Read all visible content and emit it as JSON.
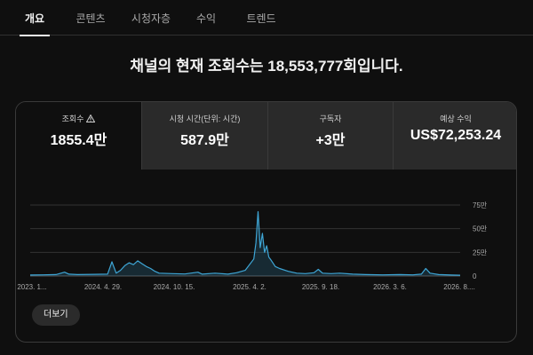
{
  "tabs": [
    {
      "label": "개요",
      "active": true
    },
    {
      "label": "콘텐츠",
      "active": false
    },
    {
      "label": "시청자층",
      "active": false
    },
    {
      "label": "수익",
      "active": false
    },
    {
      "label": "트렌드",
      "active": false
    }
  ],
  "headline": "채널의 현재 조회수는 18,553,777회입니다.",
  "metrics": [
    {
      "label": "조회수",
      "value": "1855.4만",
      "icon": "warning-icon",
      "active": true
    },
    {
      "label": "시청 시간(단위: 시간)",
      "value": "587.9만",
      "active": false
    },
    {
      "label": "구독자",
      "value": "+3만",
      "active": false
    },
    {
      "label": "예상 수익",
      "value": "US$72,253.24",
      "active": false
    }
  ],
  "more_button": "더보기",
  "colors": {
    "series": "#3ea6d6",
    "background": "#0f0f0f",
    "inactive_metric": "#2a2a2a"
  },
  "chart_data": {
    "type": "line",
    "title": "",
    "xlabel": "",
    "ylabel": "",
    "ylim": [
      0,
      750000
    ],
    "y_ticks": [
      0,
      250000,
      500000,
      750000
    ],
    "y_tick_labels": [
      "0",
      "25만",
      "50만",
      "75만"
    ],
    "y_axis_position": "right",
    "grid": true,
    "x_tick_labels": [
      "2023. 1...",
      "2024. 4. 29.",
      "2024. 10. 15.",
      "2025. 4. 2.",
      "2025. 9. 18.",
      "2026. 3. 6.",
      "2026. 8...."
    ],
    "x_range": [
      "2023-11-08",
      "2026-08-24"
    ],
    "series": [
      {
        "values": [
          [
            0.0,
            10000
          ],
          [
            0.03,
            12000
          ],
          [
            0.06,
            15000
          ],
          [
            0.08,
            40000
          ],
          [
            0.09,
            20000
          ],
          [
            0.11,
            15000
          ],
          [
            0.15,
            18000
          ],
          [
            0.18,
            20000
          ],
          [
            0.19,
            150000
          ],
          [
            0.2,
            30000
          ],
          [
            0.21,
            60000
          ],
          [
            0.22,
            110000
          ],
          [
            0.23,
            140000
          ],
          [
            0.24,
            120000
          ],
          [
            0.25,
            160000
          ],
          [
            0.26,
            130000
          ],
          [
            0.27,
            100000
          ],
          [
            0.28,
            80000
          ],
          [
            0.29,
            50000
          ],
          [
            0.3,
            30000
          ],
          [
            0.33,
            25000
          ],
          [
            0.36,
            22000
          ],
          [
            0.39,
            40000
          ],
          [
            0.4,
            20000
          ],
          [
            0.43,
            30000
          ],
          [
            0.46,
            20000
          ],
          [
            0.48,
            35000
          ],
          [
            0.5,
            60000
          ],
          [
            0.52,
            180000
          ],
          [
            0.525,
            350000
          ],
          [
            0.53,
            680000
          ],
          [
            0.535,
            300000
          ],
          [
            0.54,
            450000
          ],
          [
            0.545,
            250000
          ],
          [
            0.55,
            320000
          ],
          [
            0.555,
            200000
          ],
          [
            0.56,
            170000
          ],
          [
            0.57,
            100000
          ],
          [
            0.58,
            80000
          ],
          [
            0.6,
            50000
          ],
          [
            0.62,
            30000
          ],
          [
            0.64,
            25000
          ],
          [
            0.66,
            35000
          ],
          [
            0.67,
            70000
          ],
          [
            0.68,
            30000
          ],
          [
            0.7,
            25000
          ],
          [
            0.72,
            30000
          ],
          [
            0.75,
            20000
          ],
          [
            0.78,
            15000
          ],
          [
            0.82,
            12000
          ],
          [
            0.86,
            15000
          ],
          [
            0.89,
            12000
          ],
          [
            0.91,
            20000
          ],
          [
            0.92,
            80000
          ],
          [
            0.93,
            30000
          ],
          [
            0.95,
            15000
          ],
          [
            0.98,
            10000
          ],
          [
            1.0,
            8000
          ]
        ]
      }
    ]
  }
}
